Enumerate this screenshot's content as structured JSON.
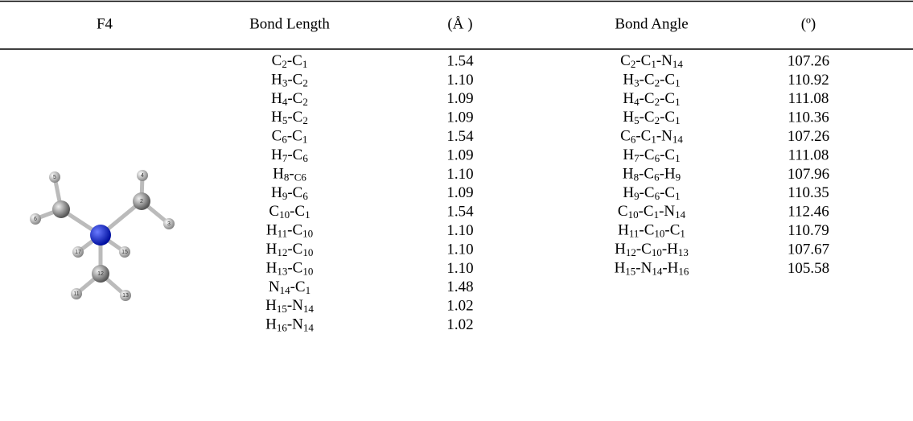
{
  "table": {
    "header": [
      "F4",
      "Bond Length",
      "(Å )",
      "Bond Angle",
      "(º)"
    ],
    "rows": [
      {
        "bond": [
          "C",
          "2",
          "-C",
          "1"
        ],
        "length": "1.54",
        "angle": [
          "C",
          "2",
          "-C",
          "1",
          "-N",
          "14"
        ],
        "degrees": "107.26"
      },
      {
        "bond": [
          "H",
          "3",
          "-C",
          "2"
        ],
        "length": "1.10",
        "angle": [
          "H",
          "3",
          "-C",
          "2",
          "-C",
          "1"
        ],
        "degrees": "110.92"
      },
      {
        "bond": [
          "H",
          "4",
          "-C",
          "2"
        ],
        "length": "1.09",
        "angle": [
          "H",
          "4",
          "-C",
          "2",
          "-C",
          "1"
        ],
        "degrees": "111.08"
      },
      {
        "bond": [
          "H",
          "5",
          "-C",
          "2"
        ],
        "length": "1.09",
        "angle": [
          "H",
          "5",
          "-C",
          "2",
          "-C",
          "1"
        ],
        "degrees": "110.36"
      },
      {
        "bond": [
          "C",
          "6",
          "-C",
          "1"
        ],
        "length": "1.54",
        "angle": [
          "C",
          "6",
          "-C",
          "1",
          "-N",
          "14"
        ],
        "degrees": "107.26"
      },
      {
        "bond": [
          "H",
          "7",
          "-C",
          "6"
        ],
        "length": "1.09",
        "angle": [
          "H",
          "7",
          "-C",
          "6",
          "-C",
          "1"
        ],
        "degrees": "111.08"
      },
      {
        "bond": [
          "H",
          "8",
          "-",
          "C6"
        ],
        "length": "1.10",
        "angle": [
          "H",
          "8",
          "-C",
          "6",
          "-H",
          "9"
        ],
        "degrees": "107.96"
      },
      {
        "bond": [
          "H",
          "9",
          "-C",
          "6"
        ],
        "length": "1.09",
        "angle": [
          "H",
          "9",
          "-C",
          "6",
          "-C",
          "1"
        ],
        "degrees": "110.35"
      },
      {
        "bond": [
          "C",
          "10",
          "-C",
          "1"
        ],
        "length": "1.54",
        "angle": [
          "C",
          "10",
          "-C",
          "1",
          "-N",
          "14"
        ],
        "degrees": "112.46"
      },
      {
        "bond": [
          "H",
          "11",
          "-C",
          "10"
        ],
        "length": "1.10",
        "angle": [
          "H",
          "11",
          "-C",
          "10",
          "-C",
          "1"
        ],
        "degrees": "110.79"
      },
      {
        "bond": [
          "H",
          "12",
          "-C",
          "10"
        ],
        "length": "1.10",
        "angle": [
          "H",
          "12",
          "-C",
          "10",
          "-H",
          "13"
        ],
        "degrees": "107.67"
      },
      {
        "bond": [
          "H",
          "13",
          "-C",
          "10"
        ],
        "length": "1.10",
        "angle": [
          "H",
          "15",
          "-N",
          "14",
          "-H",
          "16"
        ],
        "degrees": "105.58"
      },
      {
        "bond": [
          "N",
          "14",
          "-C",
          "1"
        ],
        "length": "1.48"
      },
      {
        "bond": [
          "H",
          "15",
          "-N",
          "14"
        ],
        "length": "1.02"
      },
      {
        "bond": [
          "H",
          "16",
          "-N",
          "14"
        ],
        "length": "1.02"
      }
    ]
  },
  "molecule": {
    "atoms": [
      "5",
      "6",
      "3",
      "2",
      "4",
      "12",
      "11",
      "13",
      "17",
      "15"
    ]
  }
}
